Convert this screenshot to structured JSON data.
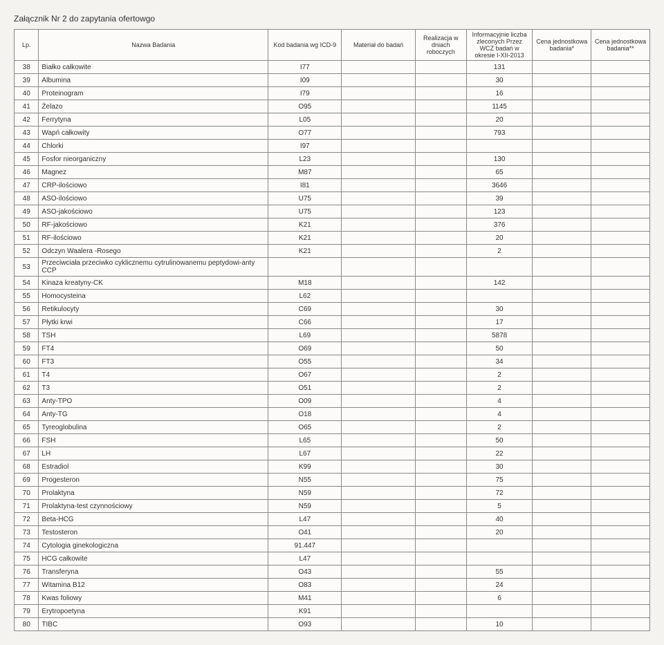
{
  "doc_title": "Załącznik Nr 2 do zapytania ofertowgo",
  "headers": {
    "lp": "Lp.",
    "name": "Nazwa Badania",
    "icd": "Kod badania wg ICD-9",
    "material": "Materiał do badań",
    "realization": "Realizacja w dniach roboczych",
    "info": "Informacyjnie liczba zleconych Przez WCZ badań w okresie I-XII-2013",
    "price1": "Cena jednostkowa badania*",
    "price2": "Cena jednostkowa badania**"
  },
  "rows": [
    {
      "lp": "38",
      "n": "Białko całkowite",
      "c": "I77",
      "i": "131"
    },
    {
      "lp": "39",
      "n": "Albumina",
      "c": "I09",
      "i": "30"
    },
    {
      "lp": "40",
      "n": "Proteinogram",
      "c": "I79",
      "i": "16"
    },
    {
      "lp": "41",
      "n": "Żelazo",
      "c": "O95",
      "i": "1145"
    },
    {
      "lp": "42",
      "n": "Ferrytyna",
      "c": "L05",
      "i": "20"
    },
    {
      "lp": "43",
      "n": "Wapń całkowity",
      "c": "O77",
      "i": "793"
    },
    {
      "lp": "44",
      "n": "Chlorki",
      "c": "I97",
      "i": ""
    },
    {
      "lp": "45",
      "n": "Fosfor nieorganiczny",
      "c": "L23",
      "i": "130"
    },
    {
      "lp": "46",
      "n": "Magnez",
      "c": "M87",
      "i": "65"
    },
    {
      "lp": "47",
      "n": "CRP-ilościowo",
      "c": "I81",
      "i": "3646"
    },
    {
      "lp": "48",
      "n": "ASO-ilościowo",
      "c": "U75",
      "i": "39"
    },
    {
      "lp": "49",
      "n": "ASO-jakościowo",
      "c": "U75",
      "i": "123"
    },
    {
      "lp": "50",
      "n": "RF-jakościowo",
      "c": "K21",
      "i": "376"
    },
    {
      "lp": "51",
      "n": "RF-ilościowo",
      "c": "K21",
      "i": "20"
    },
    {
      "lp": "52",
      "n": "Odczyn Waalera -Rosego",
      "c": "K21",
      "i": "2"
    },
    {
      "lp": "53",
      "n": "Przeciwciała przeciwko cyklicznemu cytrulinowanemu peptydowi-anty CCP",
      "c": "",
      "i": ""
    },
    {
      "lp": "54",
      "n": "Kinaza kreatyny-CK",
      "c": "M18",
      "i": "142"
    },
    {
      "lp": "55",
      "n": "Homocysteina",
      "c": "L62",
      "i": ""
    },
    {
      "lp": "56",
      "n": "Retikulocyty",
      "c": "C69",
      "i": "30"
    },
    {
      "lp": "57",
      "n": "Płytki krwi",
      "c": "C66",
      "i": "17"
    },
    {
      "lp": "58",
      "n": "TSH",
      "c": "L69",
      "i": "5878"
    },
    {
      "lp": "59",
      "n": "FT4",
      "c": "O69",
      "i": "50"
    },
    {
      "lp": "60",
      "n": "FT3",
      "c": "O55",
      "i": "34"
    },
    {
      "lp": "61",
      "n": "T4",
      "c": "O67",
      "i": "2"
    },
    {
      "lp": "62",
      "n": "T3",
      "c": "O51",
      "i": "2"
    },
    {
      "lp": "63",
      "n": "Anty-TPO",
      "c": "O09",
      "i": "4"
    },
    {
      "lp": "64",
      "n": "Anty-TG",
      "c": "O18",
      "i": "4"
    },
    {
      "lp": "65",
      "n": "Tyreoglobulina",
      "c": "O65",
      "i": "2"
    },
    {
      "lp": "66",
      "n": "FSH",
      "c": "L65",
      "i": "50"
    },
    {
      "lp": "67",
      "n": "LH",
      "c": "L67",
      "i": "22"
    },
    {
      "lp": "68",
      "n": "Estradiol",
      "c": "K99",
      "i": "30"
    },
    {
      "lp": "69",
      "n": "Progesteron",
      "c": "N55",
      "i": "75"
    },
    {
      "lp": "70",
      "n": "Prolaktyna",
      "c": "N59",
      "i": "72"
    },
    {
      "lp": "71",
      "n": "Prolaktyna-test czynnościowy",
      "c": "N59",
      "i": "5"
    },
    {
      "lp": "72",
      "n": "Beta-HCG",
      "c": "L47",
      "i": "40"
    },
    {
      "lp": "73",
      "n": "Testosteron",
      "c": "O41",
      "i": "20"
    },
    {
      "lp": "74",
      "n": "Cytologia ginekologiczna",
      "c": "91.447",
      "i": ""
    },
    {
      "lp": "75",
      "n": "HCG całkowite",
      "c": "L47",
      "i": ""
    },
    {
      "lp": "76",
      "n": "Transferyna",
      "c": "O43",
      "i": "55"
    },
    {
      "lp": "77",
      "n": "Witamina B12",
      "c": "O83",
      "i": "24"
    },
    {
      "lp": "78",
      "n": "Kwas foliowy",
      "c": "M41",
      "i": "6"
    },
    {
      "lp": "79",
      "n": "Erytropoetyna",
      "c": "K91",
      "i": ""
    },
    {
      "lp": "80",
      "n": "TIBC",
      "c": "O93",
      "i": "10"
    }
  ]
}
